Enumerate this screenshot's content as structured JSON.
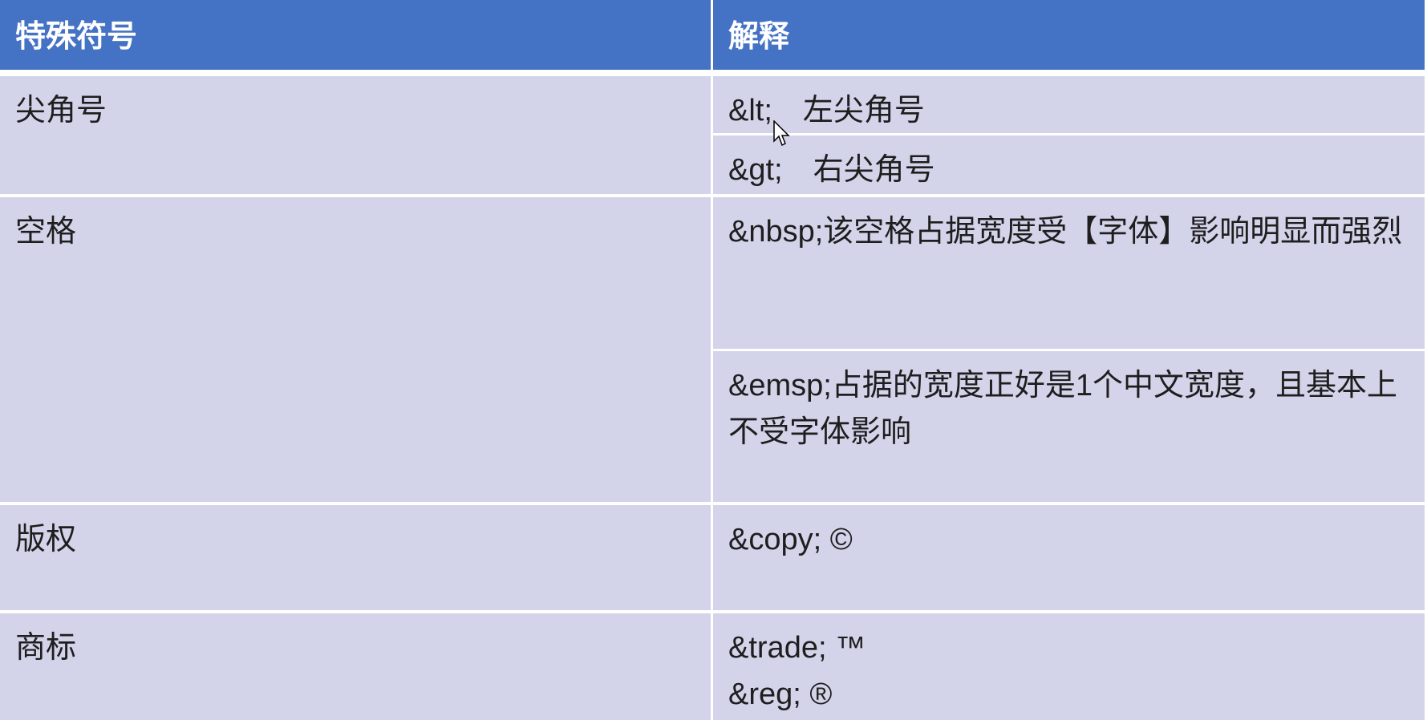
{
  "table": {
    "headers": [
      "特殊符号",
      "解释"
    ],
    "rows": [
      {
        "symbol": "尖角号",
        "explanations": [
          "&lt;　左尖角号",
          "&gt;　右尖角号"
        ]
      },
      {
        "symbol": "空格",
        "explanations": [
          "&nbsp;该空格占据宽度受【字体】影响明显而强烈",
          "&emsp;占据的宽度正好是1个中文宽度，且基本上不受字体影响"
        ]
      },
      {
        "symbol": "版权",
        "explanations": [
          "&copy; ©"
        ]
      },
      {
        "symbol": "商标",
        "explanations": [
          "&trade; ™",
          "&reg; ®"
        ]
      }
    ]
  },
  "colors": {
    "header_bg": "#4472c4",
    "cell_bg": "#d3d4ea",
    "border": "#ffffff"
  },
  "icons": {
    "cursor": "mouse-pointer-icon"
  }
}
